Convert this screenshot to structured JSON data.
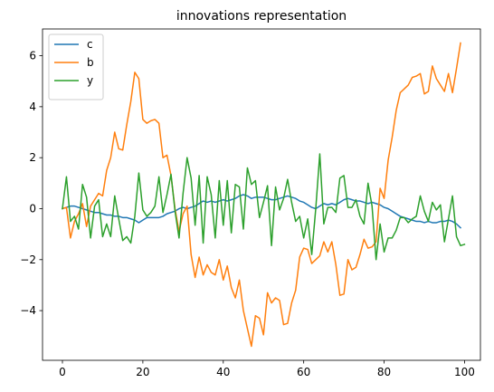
{
  "chart_data": {
    "type": "line",
    "title": "innovations representation",
    "xlabel": "",
    "ylabel": "",
    "xlim": [
      -4.95,
      103.95
    ],
    "ylim": [
      -5.95,
      7.05
    ],
    "xticks": [
      0,
      20,
      40,
      60,
      80,
      100
    ],
    "yticks": [
      -4,
      -2,
      0,
      2,
      4,
      6
    ],
    "grid": false,
    "legend_position": "top-left",
    "series": [
      {
        "name": "c",
        "color": "#1f77b4",
        "values": [
          0,
          0.05,
          0.1,
          0.1,
          0.05,
          0,
          -0.05,
          -0.1,
          -0.15,
          -0.15,
          -0.2,
          -0.25,
          -0.25,
          -0.3,
          -0.3,
          -0.35,
          -0.35,
          -0.4,
          -0.45,
          -0.55,
          -0.45,
          -0.35,
          -0.35,
          -0.35,
          -0.35,
          -0.3,
          -0.2,
          -0.15,
          -0.1,
          0,
          0.05,
          0,
          0.05,
          0.1,
          0.2,
          0.3,
          0.25,
          0.3,
          0.25,
          0.3,
          0.35,
          0.3,
          0.35,
          0.4,
          0.5,
          0.55,
          0.5,
          0.4,
          0.45,
          0.45,
          0.45,
          0.4,
          0.35,
          0.35,
          0.4,
          0.45,
          0.5,
          0.45,
          0.4,
          0.3,
          0.25,
          0.15,
          0.05,
          0,
          0.1,
          0.2,
          0.15,
          0.2,
          0.15,
          0.25,
          0.35,
          0.4,
          0.35,
          0.3,
          0.3,
          0.25,
          0.2,
          0.25,
          0.2,
          0.15,
          0.05,
          0,
          -0.1,
          -0.2,
          -0.3,
          -0.35,
          -0.4,
          -0.45,
          -0.5,
          -0.5,
          -0.55,
          -0.5,
          -0.55,
          -0.55,
          -0.5,
          -0.5,
          -0.45,
          -0.5,
          -0.6,
          -0.75
        ]
      },
      {
        "name": "b",
        "color": "#ff7f0e",
        "values": [
          0,
          0.05,
          -1.15,
          -0.5,
          -0.2,
          0.2,
          -0.7,
          0.1,
          0.35,
          0.6,
          0.5,
          1.5,
          2.0,
          3.0,
          2.35,
          2.3,
          3.3,
          4.2,
          5.35,
          5.1,
          3.5,
          3.35,
          3.45,
          3.5,
          3.35,
          2.0,
          2.1,
          1.3,
          0.0,
          -0.9,
          -0.2,
          0.1,
          -1.8,
          -2.7,
          -1.9,
          -2.6,
          -2.2,
          -2.5,
          -2.6,
          -2.0,
          -2.8,
          -2.25,
          -3.1,
          -3.5,
          -2.8,
          -4.0,
          -4.7,
          -5.4,
          -4.2,
          -4.3,
          -4.95,
          -3.3,
          -3.7,
          -3.5,
          -3.6,
          -4.55,
          -4.5,
          -3.7,
          -3.2,
          -1.9,
          -1.55,
          -1.6,
          -2.15,
          -2.0,
          -1.85,
          -1.3,
          -1.7,
          -1.3,
          -2.2,
          -3.4,
          -3.35,
          -2.0,
          -2.4,
          -2.3,
          -1.8,
          -1.2,
          -1.55,
          -1.5,
          -1.3,
          0.8,
          0.4,
          1.9,
          2.8,
          3.85,
          4.55,
          4.7,
          4.85,
          5.15,
          5.2,
          5.3,
          4.5,
          4.6,
          5.6,
          5.1,
          4.85,
          4.6,
          5.3,
          4.55,
          5.5,
          6.5
        ]
      },
      {
        "name": "y",
        "color": "#2ca02c",
        "values": [
          0,
          1.25,
          -0.5,
          -0.3,
          -0.8,
          0.95,
          0.45,
          -1.15,
          0.1,
          0.35,
          -1.1,
          -0.6,
          -1.1,
          0.5,
          -0.4,
          -1.25,
          -1.1,
          -1.35,
          -0.3,
          1.4,
          -0.05,
          -0.3,
          -0.15,
          0.1,
          1.25,
          -0.15,
          0.55,
          1.35,
          -0.1,
          -1.15,
          0.6,
          2.0,
          1.2,
          -0.65,
          1.3,
          -1.35,
          1.25,
          0.55,
          -1.15,
          1.1,
          -0.65,
          1.1,
          -0.95,
          0.95,
          0.85,
          -0.8,
          1.6,
          0.95,
          1.1,
          -0.35,
          0.25,
          0.9,
          -1.45,
          0.85,
          -0.05,
          0.4,
          1.15,
          0.25,
          -0.5,
          -0.3,
          -1.15,
          -0.4,
          -1.8,
          0.0,
          2.15,
          -0.6,
          0.05,
          0.05,
          -0.15,
          1.2,
          1.3,
          0.05,
          0.05,
          0.35,
          -0.3,
          -0.6,
          1.0,
          0.1,
          -2.0,
          -0.6,
          -1.7,
          -1.15,
          -1.15,
          -0.85,
          -0.35,
          -0.35,
          -0.55,
          -0.4,
          -0.3,
          0.5,
          -0.1,
          -0.5,
          0.25,
          -0.05,
          0.15,
          -1.3,
          -0.4,
          0.5,
          -1.1,
          -1.45,
          -1.4
        ]
      }
    ]
  }
}
